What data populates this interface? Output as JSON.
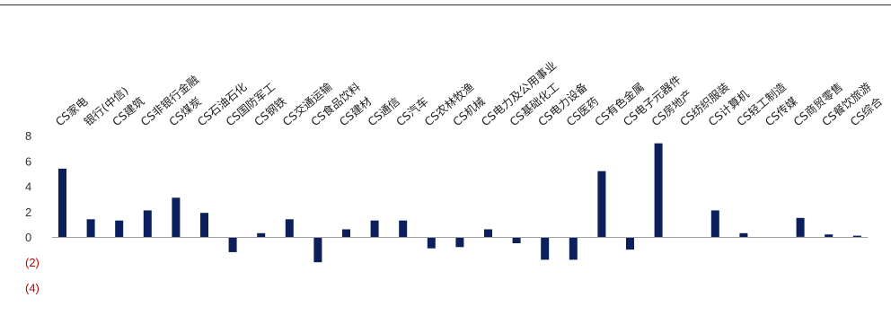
{
  "chart_data": {
    "type": "bar",
    "title": "",
    "xlabel": "",
    "ylabel": "",
    "ylim": [
      -4,
      8
    ],
    "yticks": [
      {
        "value": 8,
        "label": "8"
      },
      {
        "value": 6,
        "label": "6"
      },
      {
        "value": 4,
        "label": "4"
      },
      {
        "value": 2,
        "label": "2"
      },
      {
        "value": 0,
        "label": "0"
      },
      {
        "value": -2,
        "label": "(2)"
      },
      {
        "value": -4,
        "label": "(4)"
      }
    ],
    "negative_label_color": "#c00000",
    "positive_label_color": "#333333",
    "bar_color": "#0b1f5c",
    "grid": false,
    "legend": "none",
    "categories": [
      "CS家电",
      "银行(中信)",
      "CS建筑",
      "CS非银行金融",
      "CS煤炭",
      "CS石油石化",
      "CS国防军工",
      "CS钢铁",
      "CS交通运输",
      "CS食品饮料",
      "CS建材",
      "CS通信",
      "CS汽车",
      "CS农林牧渔",
      "CS机械",
      "CS电力及公用事业",
      "CS基础化工",
      "CS电力设备",
      "CS医药",
      "CS有色金属",
      "CS电子元器件",
      "CS房地产",
      "CS纺织服装",
      "CS计算机",
      "CS轻工制造",
      "CS传媒",
      "CS商贸零售",
      "CS餐饮旅游",
      "CS综合"
    ],
    "values": [
      5.4,
      1.4,
      1.3,
      2.1,
      3.1,
      1.9,
      -1.2,
      0.3,
      1.4,
      -2.0,
      0.6,
      1.3,
      1.3,
      -0.9,
      -0.8,
      0.6,
      -0.5,
      -1.8,
      -1.8,
      5.2,
      -1.0,
      7.4,
      0.0,
      2.1,
      0.3,
      0.0,
      1.5,
      0.2,
      0.1
    ]
  }
}
